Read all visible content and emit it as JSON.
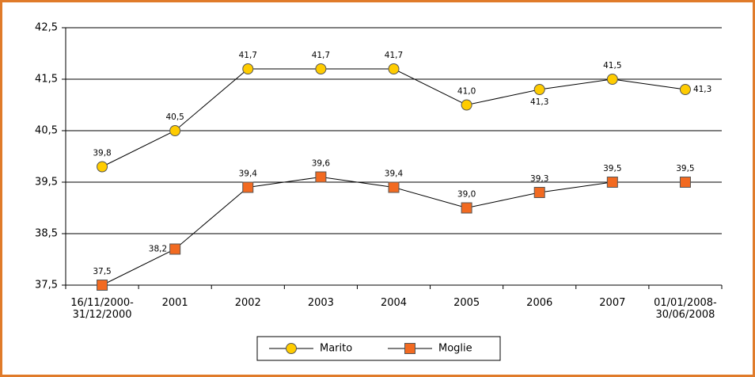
{
  "chart_data": {
    "type": "line",
    "categories": [
      "16/11/2000-\n31/12/2000",
      "2001",
      "2002",
      "2003",
      "2004",
      "2005",
      "2006",
      "2007",
      "01/01/2008-\n30/06/2008"
    ],
    "series": [
      {
        "name": "Marito",
        "color": "#ffcc00",
        "marker": "circle",
        "values": [
          39.8,
          40.5,
          41.7,
          41.7,
          41.7,
          41.0,
          41.3,
          41.5,
          41.3
        ],
        "value_labels": [
          "39,8",
          "40,5",
          "41,7",
          "41,7",
          "41,7",
          "41,0",
          "41,3",
          "41,5",
          "41,3"
        ]
      },
      {
        "name": "Moglie",
        "color": "#f26a21",
        "marker": "square",
        "values": [
          37.5,
          38.2,
          39.4,
          39.6,
          39.4,
          39.0,
          39.3,
          39.5,
          39.5
        ],
        "value_labels": [
          "37,5",
          "38,2",
          "39,4",
          "39,6",
          "39,4",
          "39,0",
          "39,3",
          "39,5",
          "39,5"
        ]
      }
    ],
    "ylim": [
      37.5,
      42.5
    ],
    "yticks": [
      {
        "value": 37.5,
        "label": "37,5"
      },
      {
        "value": 38.5,
        "label": "38,5"
      },
      {
        "value": 39.5,
        "label": "39,5"
      },
      {
        "value": 40.5,
        "label": "40,5"
      },
      {
        "value": 41.5,
        "label": "41,5"
      },
      {
        "value": 42.5,
        "label": "42,5"
      }
    ],
    "grid": true,
    "legend": "bottom"
  }
}
